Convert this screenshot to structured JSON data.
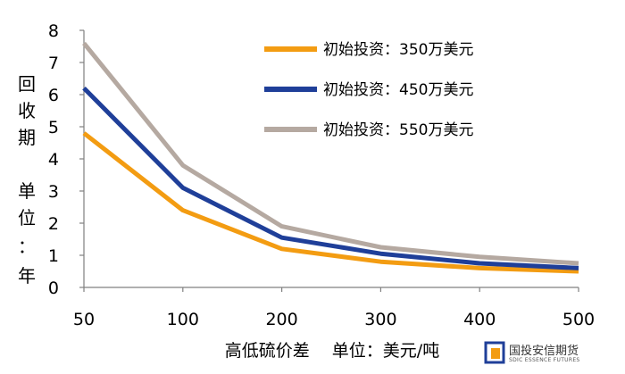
{
  "chart_data": {
    "type": "line",
    "categories": [
      "50",
      "100",
      "200",
      "300",
      "400",
      "500"
    ],
    "series": [
      {
        "name": "初始投资：350万美元",
        "color": "#F39C12",
        "values": [
          4.8,
          2.4,
          1.2,
          0.8,
          0.6,
          0.5
        ]
      },
      {
        "name": "初始投资：450万美元",
        "color": "#1F3F99",
        "values": [
          6.2,
          3.1,
          1.55,
          1.05,
          0.75,
          0.6
        ]
      },
      {
        "name": "初始投资：550万美元",
        "color": "#B5A9A1",
        "values": [
          7.6,
          3.8,
          1.9,
          1.25,
          0.95,
          0.75
        ]
      }
    ],
    "ylim": [
      0,
      8
    ],
    "yticks": [
      "0",
      "1",
      "2",
      "3",
      "4",
      "5",
      "6",
      "7",
      "8"
    ],
    "ylabel_chars": [
      "回",
      "收",
      "期",
      "单",
      "位",
      "：",
      "年"
    ],
    "xlabel": "高低硫价差　 单位：美元/吨",
    "legend_position": "top-right"
  },
  "branding": {
    "name": "国投安信期货",
    "sub": "SDIC ESSENCE FUTURES",
    "colors": {
      "blue": "#1F3F99",
      "orange": "#F39C12"
    }
  }
}
